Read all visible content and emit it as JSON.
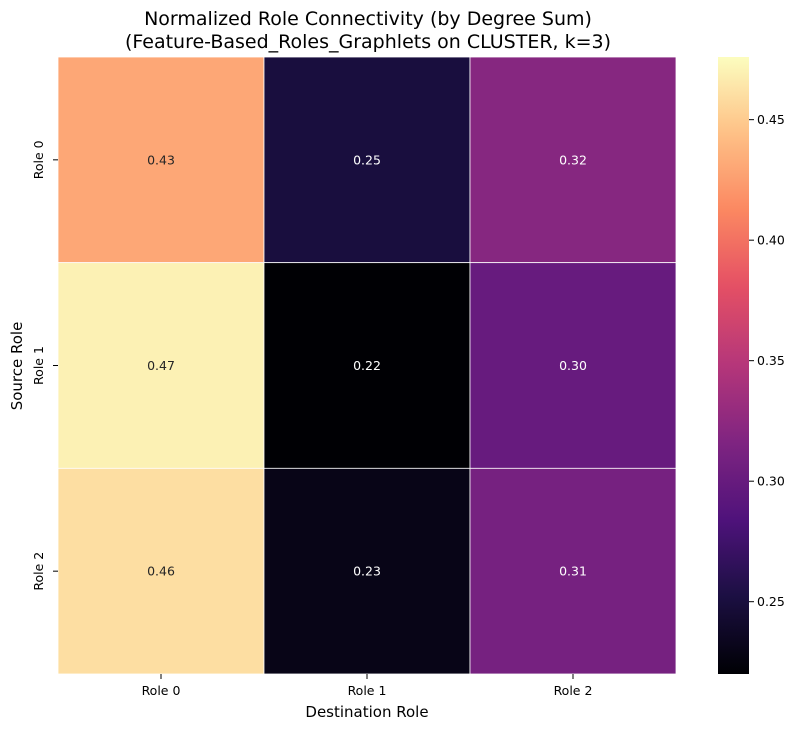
{
  "chart_data": {
    "type": "heatmap",
    "title_lines": [
      "Normalized Role Connectivity (by Degree Sum)",
      "(Feature-Based_Roles_Graphlets on CLUSTER, k=3)"
    ],
    "xlabel": "Destination Role",
    "ylabel": "Source Role",
    "x_categories": [
      "Role 0",
      "Role 1",
      "Role 2"
    ],
    "y_categories": [
      "Role 0",
      "Role 1",
      "Role 2"
    ],
    "values": [
      [
        0.43,
        0.25,
        0.32
      ],
      [
        0.47,
        0.22,
        0.3
      ],
      [
        0.46,
        0.23,
        0.31
      ]
    ],
    "cell_labels": [
      [
        "0.43",
        "0.25",
        "0.32"
      ],
      [
        "0.47",
        "0.22",
        "0.30"
      ],
      [
        "0.46",
        "0.23",
        "0.31"
      ]
    ],
    "colormap": "magma",
    "colorbar": {
      "range": [
        0.22,
        0.476
      ],
      "ticks": [
        0.25,
        0.3,
        0.35,
        0.4,
        0.45
      ],
      "tick_labels": [
        "0.25",
        "0.30",
        "0.35",
        "0.40",
        "0.45"
      ]
    },
    "cell_border_color": "#ffffff"
  }
}
